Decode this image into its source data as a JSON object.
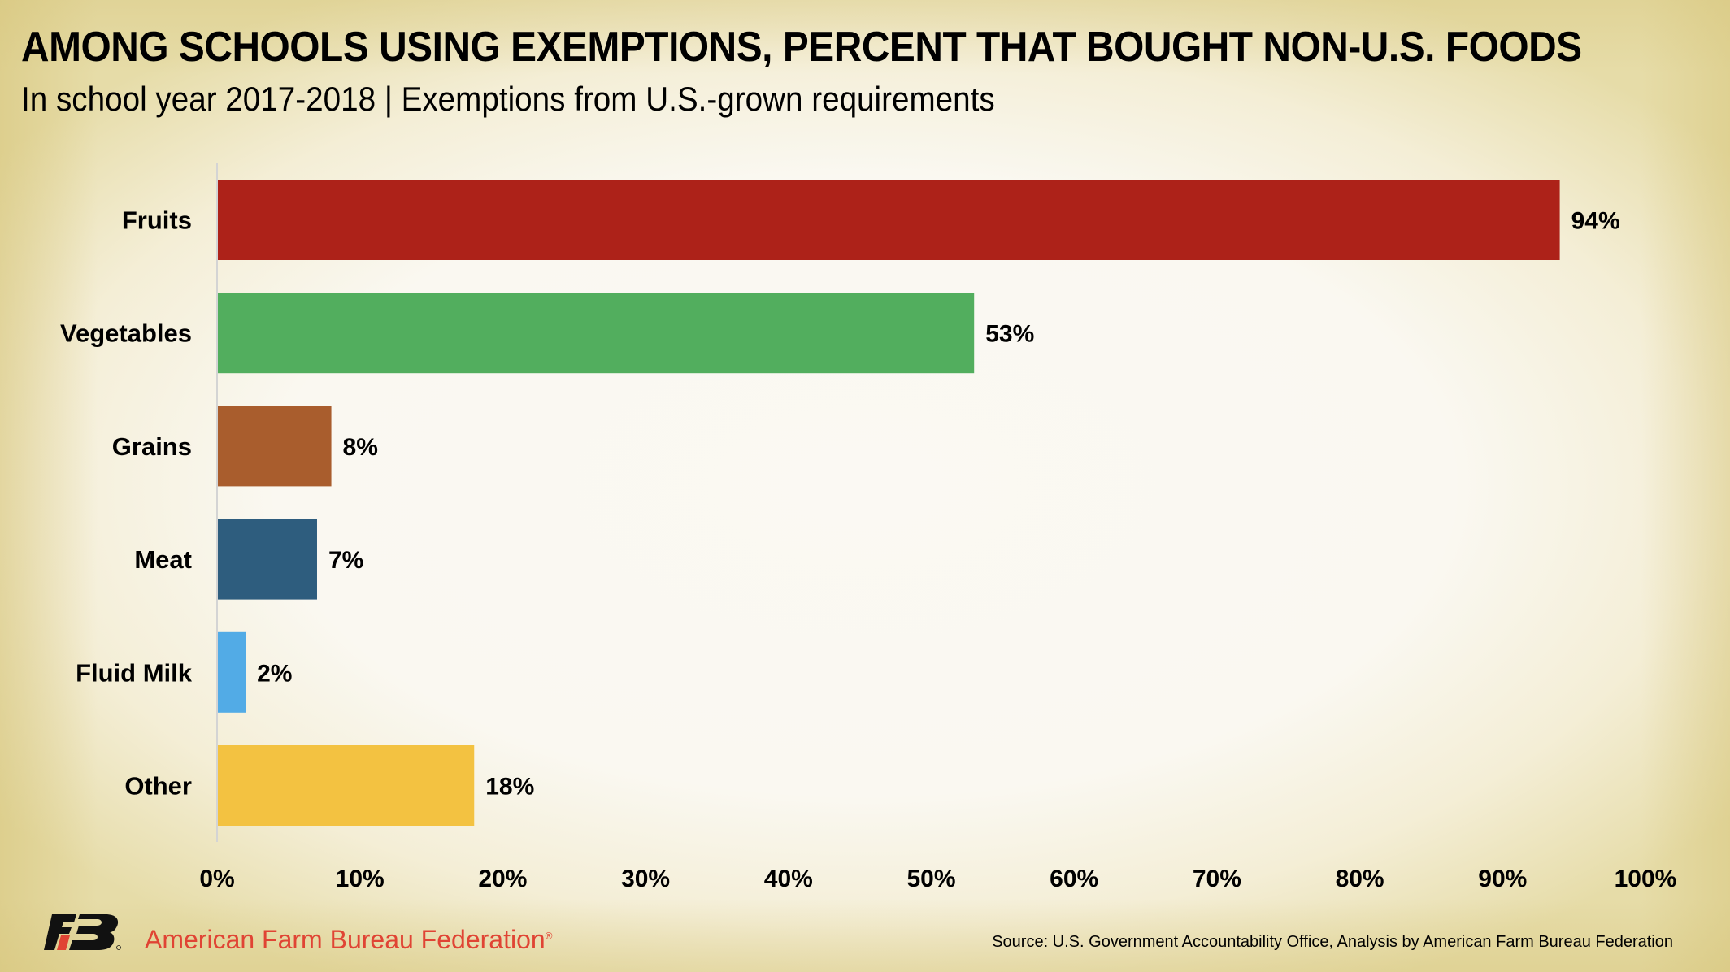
{
  "header": {
    "title": "AMONG SCHOOLS USING EXEMPTIONS, PERCENT THAT BOUGHT NON-U.S. FOODS",
    "subtitle": "In school year 2017-2018 | Exemptions from U.S.-grown requirements"
  },
  "footer": {
    "organization": "American Farm Bureau Federation",
    "registered_mark": "®",
    "source": "Source: U.S. Government Accountability Office, Analysis by American Farm Bureau Federation",
    "logo_icon": "afbf-fb-logo-icon",
    "logo_colors": {
      "dark": "#111111",
      "accent": "#e04434"
    }
  },
  "chart_data": {
    "type": "bar",
    "orientation": "horizontal",
    "title": "AMONG SCHOOLS USING EXEMPTIONS, PERCENT THAT BOUGHT NON-U.S. FOODS",
    "subtitle": "In school year 2017-2018 | Exemptions from U.S.-grown requirements",
    "xlabel": "",
    "ylabel": "",
    "categories": [
      "Fruits",
      "Vegetables",
      "Grains",
      "Meat",
      "Fluid Milk",
      "Other"
    ],
    "values": [
      94,
      53,
      8,
      7,
      2,
      18
    ],
    "value_labels": [
      "94%",
      "53%",
      "8%",
      "7%",
      "2%",
      "18%"
    ],
    "colors": [
      "#ad2219",
      "#52ae5e",
      "#a95d2d",
      "#2e5d7e",
      "#52abe6",
      "#f3c241"
    ],
    "xlim": [
      0,
      100
    ],
    "xticks": [
      0,
      10,
      20,
      30,
      40,
      50,
      60,
      70,
      80,
      90,
      100
    ],
    "xtick_labels": [
      "0%",
      "10%",
      "20%",
      "30%",
      "40%",
      "50%",
      "60%",
      "70%",
      "80%",
      "90%",
      "100%"
    ],
    "grid": false,
    "legend": "none"
  }
}
